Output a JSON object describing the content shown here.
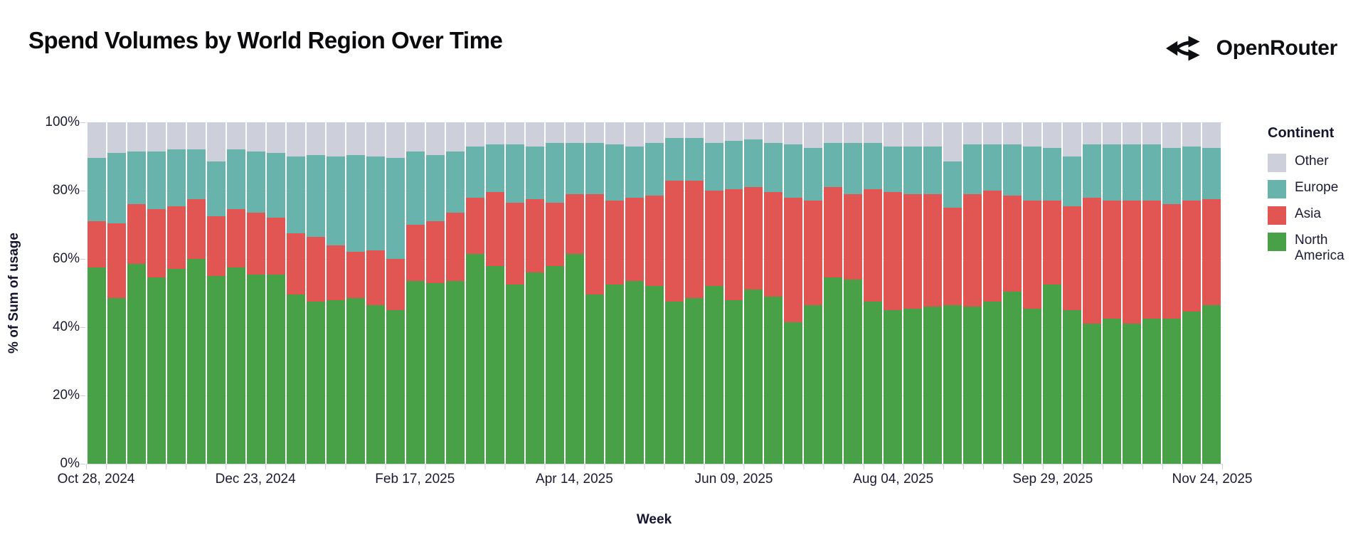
{
  "page": {
    "title": "Spend Volumes by World Region Over Time"
  },
  "brand": {
    "name": "OpenRouter",
    "icon": "openrouter-split-arrows-icon"
  },
  "colors": {
    "north_america": "#48a147",
    "asia": "#e15553",
    "europe": "#68b3ac",
    "other": "#cdd0db",
    "text_dark": "#16162e",
    "axis_line": "#d8dae2"
  },
  "chart_data": {
    "type": "bar",
    "stacked": true,
    "normalized_percent": true,
    "title": "Spend Volumes by World Region Over Time",
    "xlabel": "Week",
    "ylabel": "% of Sum of usage",
    "ylim": [
      0,
      100
    ],
    "grid": "horizontal-faint",
    "y_tick_labels": [
      "100%",
      "80%",
      "60%",
      "40%",
      "20%",
      "0%"
    ],
    "x_tick_labels": [
      "Oct 28, 2024",
      "Dec 23, 2024",
      "Feb 17, 2025",
      "Apr 14, 2025",
      "Jun 09, 2025",
      "Aug 04, 2025",
      "Sep 29, 2025",
      "Nov 24, 2025"
    ],
    "x_tick_indices": [
      0,
      8,
      16,
      24,
      32,
      40,
      48,
      56
    ],
    "legend": {
      "title": "Continent",
      "position": "right",
      "order_top_to_bottom": [
        "Other",
        "Europe",
        "Asia",
        "North America"
      ]
    },
    "categories": [
      "Oct 28, 2024",
      "Nov 04, 2024",
      "Nov 11, 2024",
      "Nov 18, 2024",
      "Nov 25, 2024",
      "Dec 02, 2024",
      "Dec 09, 2024",
      "Dec 16, 2024",
      "Dec 23, 2024",
      "Dec 30, 2024",
      "Jan 06, 2025",
      "Jan 13, 2025",
      "Jan 20, 2025",
      "Jan 27, 2025",
      "Feb 03, 2025",
      "Feb 10, 2025",
      "Feb 17, 2025",
      "Feb 24, 2025",
      "Mar 03, 2025",
      "Mar 10, 2025",
      "Mar 17, 2025",
      "Mar 24, 2025",
      "Mar 31, 2025",
      "Apr 07, 2025",
      "Apr 14, 2025",
      "Apr 21, 2025",
      "Apr 28, 2025",
      "May 05, 2025",
      "May 12, 2025",
      "May 19, 2025",
      "May 26, 2025",
      "Jun 02, 2025",
      "Jun 09, 2025",
      "Jun 16, 2025",
      "Jun 23, 2025",
      "Jun 30, 2025",
      "Jul 07, 2025",
      "Jul 14, 2025",
      "Jul 21, 2025",
      "Jul 28, 2025",
      "Aug 04, 2025",
      "Aug 11, 2025",
      "Aug 18, 2025",
      "Aug 25, 2025",
      "Sep 01, 2025",
      "Sep 08, 2025",
      "Sep 15, 2025",
      "Sep 22, 2025",
      "Sep 29, 2025",
      "Oct 06, 2025",
      "Oct 13, 2025",
      "Oct 20, 2025",
      "Oct 27, 2025",
      "Nov 03, 2025",
      "Nov 10, 2025",
      "Nov 17, 2025",
      "Nov 24, 2025"
    ],
    "series": [
      {
        "name": "North America",
        "color": "#48a147",
        "values": [
          57.5,
          48.5,
          58.5,
          54.5,
          57,
          60,
          55,
          57.5,
          55.5,
          55.5,
          49.5,
          47.5,
          48,
          48.5,
          46.5,
          45,
          53.5,
          53,
          53.5,
          61.5,
          58,
          52.5,
          56,
          58,
          61.5,
          49.5,
          52.5,
          53.5,
          52,
          47.5,
          48.5,
          52,
          48,
          51,
          49,
          41.5,
          46.5,
          54.5,
          54,
          47.5,
          45,
          45.5,
          46,
          46.5,
          46,
          47.5,
          50.5,
          45.5,
          52.5,
          45,
          41,
          42.5,
          41,
          42.5,
          42.5,
          44.5,
          46.5
        ]
      },
      {
        "name": "Asia",
        "color": "#e15553",
        "values": [
          13.5,
          22,
          17.5,
          20,
          18.5,
          17.5,
          17.5,
          17,
          18,
          16.5,
          18,
          19,
          16,
          13.5,
          16,
          15,
          16.5,
          18,
          20,
          16.5,
          21.5,
          24,
          21.5,
          18.5,
          17.5,
          29.5,
          24.5,
          24.5,
          26.5,
          35.5,
          34.5,
          28,
          32.5,
          30,
          30.5,
          36.5,
          30.5,
          26.5,
          25,
          33,
          34.5,
          33.5,
          33,
          28.5,
          33,
          32.5,
          28,
          31.5,
          24.5,
          30.5,
          37,
          34.5,
          36,
          34.5,
          33.5,
          32.5,
          31
        ]
      },
      {
        "name": "Europe",
        "color": "#68b3ac",
        "values": [
          18.5,
          20.5,
          15.5,
          17,
          16.5,
          14.5,
          16,
          17.5,
          18,
          19,
          22.5,
          24,
          26,
          28.5,
          27.5,
          29.5,
          21.5,
          19.5,
          18,
          15,
          14,
          17,
          15.5,
          17.5,
          15,
          15,
          16.5,
          15,
          15.5,
          12.5,
          12.5,
          14,
          14,
          14,
          14.5,
          15.5,
          15.5,
          13,
          15,
          13.5,
          13.5,
          14,
          14,
          13.5,
          14.5,
          13.5,
          15,
          16,
          15.5,
          14.5,
          15.5,
          16.5,
          16.5,
          16.5,
          16.5,
          16,
          15
        ]
      },
      {
        "name": "Other",
        "color": "#cdd0db",
        "values": [
          10.5,
          9,
          8.5,
          8.5,
          8,
          8,
          11.5,
          8,
          8.5,
          9,
          10,
          9.5,
          10,
          9.5,
          10,
          10.5,
          8.5,
          9.5,
          8.5,
          7,
          6.5,
          6.5,
          7,
          6,
          6,
          6,
          6.5,
          7,
          6,
          4.5,
          4.5,
          6,
          5.5,
          5,
          6,
          6.5,
          7.5,
          6,
          6,
          6,
          7,
          7,
          7,
          11.5,
          6.5,
          6.5,
          6.5,
          7,
          7.5,
          10,
          6.5,
          6.5,
          6.5,
          6.5,
          7.5,
          7,
          7.5
        ]
      }
    ]
  }
}
